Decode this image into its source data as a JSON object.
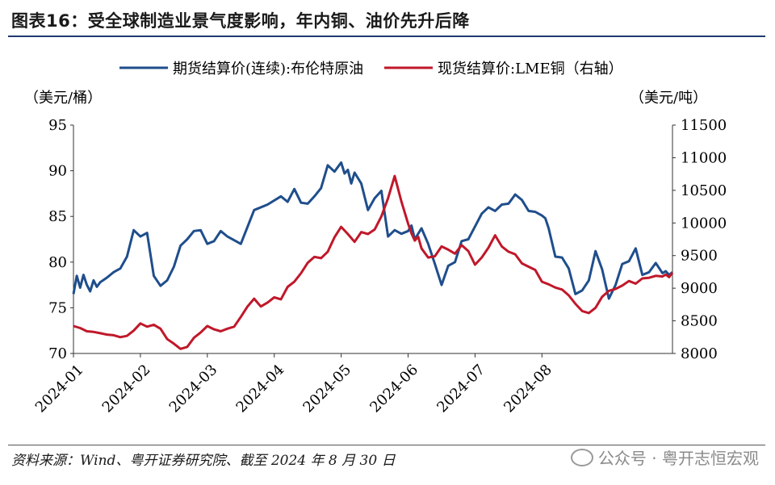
{
  "title": "图表16：受全球制造业景气度影响，年内铜、油价先升后降",
  "source": "资料来源：Wind、粤开证券研究院、截至 2024 年 8 月 30 日",
  "watermark": "公众号 · 粤开志恒宏观",
  "colors": {
    "brent": "#1f4e8c",
    "copper": "#c0182a",
    "rule": "#1f3a6e"
  },
  "chart_data": {
    "type": "line",
    "title": "",
    "legend_position": "top",
    "left_axis_unit": "（美元/桶）",
    "right_axis_unit": "（美元/吨）",
    "ylim_left": [
      70,
      95
    ],
    "ylim_right": [
      8000,
      11500
    ],
    "yticks_left": [
      70,
      75,
      80,
      85,
      90,
      95
    ],
    "yticks_right": [
      8000,
      8500,
      9000,
      9500,
      10000,
      10500,
      11000,
      11500
    ],
    "xlim": [
      0,
      8.95
    ],
    "x_tick_labels": [
      "2024-01",
      "2024-02",
      "2024-03",
      "2024-04",
      "2024-05",
      "2024-06",
      "2024-07",
      "2024-08"
    ],
    "series": [
      {
        "name": "期货结算价(连续):布伦特原油",
        "axis": "left",
        "x": [
          0,
          0.05,
          0.1,
          0.15,
          0.2,
          0.25,
          0.3,
          0.35,
          0.4,
          0.5,
          0.6,
          0.7,
          0.8,
          0.9,
          1.0,
          1.1,
          1.2,
          1.3,
          1.4,
          1.5,
          1.6,
          1.7,
          1.8,
          1.9,
          2.0,
          2.1,
          2.2,
          2.3,
          2.5,
          2.7,
          2.9,
          3.1,
          3.2,
          3.3,
          3.4,
          3.5,
          3.6,
          3.7,
          3.8,
          3.9,
          4.0,
          4.05,
          4.1,
          4.15,
          4.2,
          4.3,
          4.4,
          4.5,
          4.6,
          4.7,
          4.8,
          4.9,
          5.0,
          5.05,
          5.1,
          5.2,
          5.3,
          5.4,
          5.5,
          5.6,
          5.7,
          5.8,
          5.9,
          6.0,
          6.1,
          6.2,
          6.3,
          6.4,
          6.5,
          6.6,
          6.7,
          6.8,
          6.9,
          7.0,
          7.05,
          7.1,
          7.2,
          7.3,
          7.4,
          7.5,
          7.6,
          7.7,
          7.8,
          7.9,
          8.0,
          8.1,
          8.2,
          8.3,
          8.4,
          8.5,
          8.6,
          8.7,
          8.8,
          8.85,
          8.9,
          8.95
        ],
        "values": [
          76.5,
          78.5,
          77.2,
          78.6,
          77.5,
          76.8,
          78.0,
          77.3,
          77.8,
          78.3,
          78.9,
          79.3,
          80.6,
          83.5,
          82.8,
          83.2,
          78.5,
          77.4,
          78.0,
          79.5,
          81.8,
          82.5,
          83.4,
          83.5,
          82.0,
          82.3,
          83.4,
          82.8,
          82.0,
          85.7,
          86.3,
          87.2,
          86.6,
          88.0,
          86.5,
          86.4,
          87.2,
          88.1,
          90.6,
          89.9,
          90.9,
          89.7,
          90.1,
          88.6,
          89.8,
          88.6,
          85.7,
          87.0,
          87.8,
          82.8,
          83.5,
          83.1,
          83.4,
          84.0,
          82.5,
          83.7,
          82.0,
          79.8,
          77.5,
          79.6,
          80.0,
          82.3,
          82.5,
          83.9,
          85.3,
          86.0,
          85.6,
          86.3,
          86.4,
          87.4,
          86.8,
          85.6,
          85.5,
          85.1,
          84.8,
          83.7,
          80.6,
          80.5,
          79.3,
          76.5,
          76.9,
          78.0,
          81.2,
          79.2,
          76.0,
          77.5,
          79.8,
          80.1,
          81.5,
          78.6,
          78.9,
          79.9,
          78.8,
          79.0,
          78.6,
          78.9
        ]
      },
      {
        "name": "现货结算价:LME铜（右轴）",
        "axis": "right",
        "x": [
          0,
          0.1,
          0.2,
          0.3,
          0.4,
          0.5,
          0.6,
          0.7,
          0.8,
          0.9,
          1.0,
          1.1,
          1.2,
          1.3,
          1.4,
          1.5,
          1.6,
          1.7,
          1.8,
          1.9,
          2.0,
          2.1,
          2.2,
          2.3,
          2.4,
          2.5,
          2.6,
          2.7,
          2.8,
          2.9,
          3.0,
          3.1,
          3.2,
          3.3,
          3.4,
          3.5,
          3.6,
          3.7,
          3.8,
          3.9,
          4.0,
          4.1,
          4.2,
          4.3,
          4.4,
          4.5,
          4.6,
          4.7,
          4.8,
          4.9,
          5.0,
          5.05,
          5.1,
          5.15,
          5.2,
          5.3,
          5.4,
          5.5,
          5.6,
          5.7,
          5.8,
          5.9,
          6.0,
          6.1,
          6.2,
          6.3,
          6.4,
          6.5,
          6.6,
          6.7,
          6.8,
          6.9,
          7.0,
          7.1,
          7.2,
          7.3,
          7.4,
          7.5,
          7.6,
          7.7,
          7.8,
          7.9,
          8.0,
          8.1,
          8.2,
          8.3,
          8.4,
          8.5,
          8.6,
          8.7,
          8.8,
          8.85,
          8.9,
          8.95
        ],
        "values": [
          8420,
          8390,
          8340,
          8330,
          8310,
          8290,
          8280,
          8250,
          8270,
          8350,
          8460,
          8410,
          8440,
          8380,
          8220,
          8150,
          8070,
          8100,
          8240,
          8320,
          8420,
          8370,
          8340,
          8380,
          8410,
          8560,
          8720,
          8840,
          8720,
          8780,
          8860,
          8830,
          9020,
          9100,
          9230,
          9390,
          9480,
          9460,
          9560,
          9780,
          9940,
          9830,
          9710,
          9860,
          9830,
          9900,
          10100,
          10380,
          10720,
          10330,
          9990,
          9840,
          9730,
          9790,
          9610,
          9470,
          9490,
          9640,
          9590,
          9530,
          9660,
          9570,
          9360,
          9470,
          9620,
          9810,
          9640,
          9560,
          9520,
          9380,
          9330,
          9280,
          9100,
          9060,
          9010,
          8980,
          8890,
          8760,
          8650,
          8620,
          8700,
          8870,
          8960,
          8990,
          9040,
          9110,
          9070,
          9150,
          9160,
          9190,
          9180,
          9210,
          9170,
          9240
        ]
      }
    ]
  }
}
